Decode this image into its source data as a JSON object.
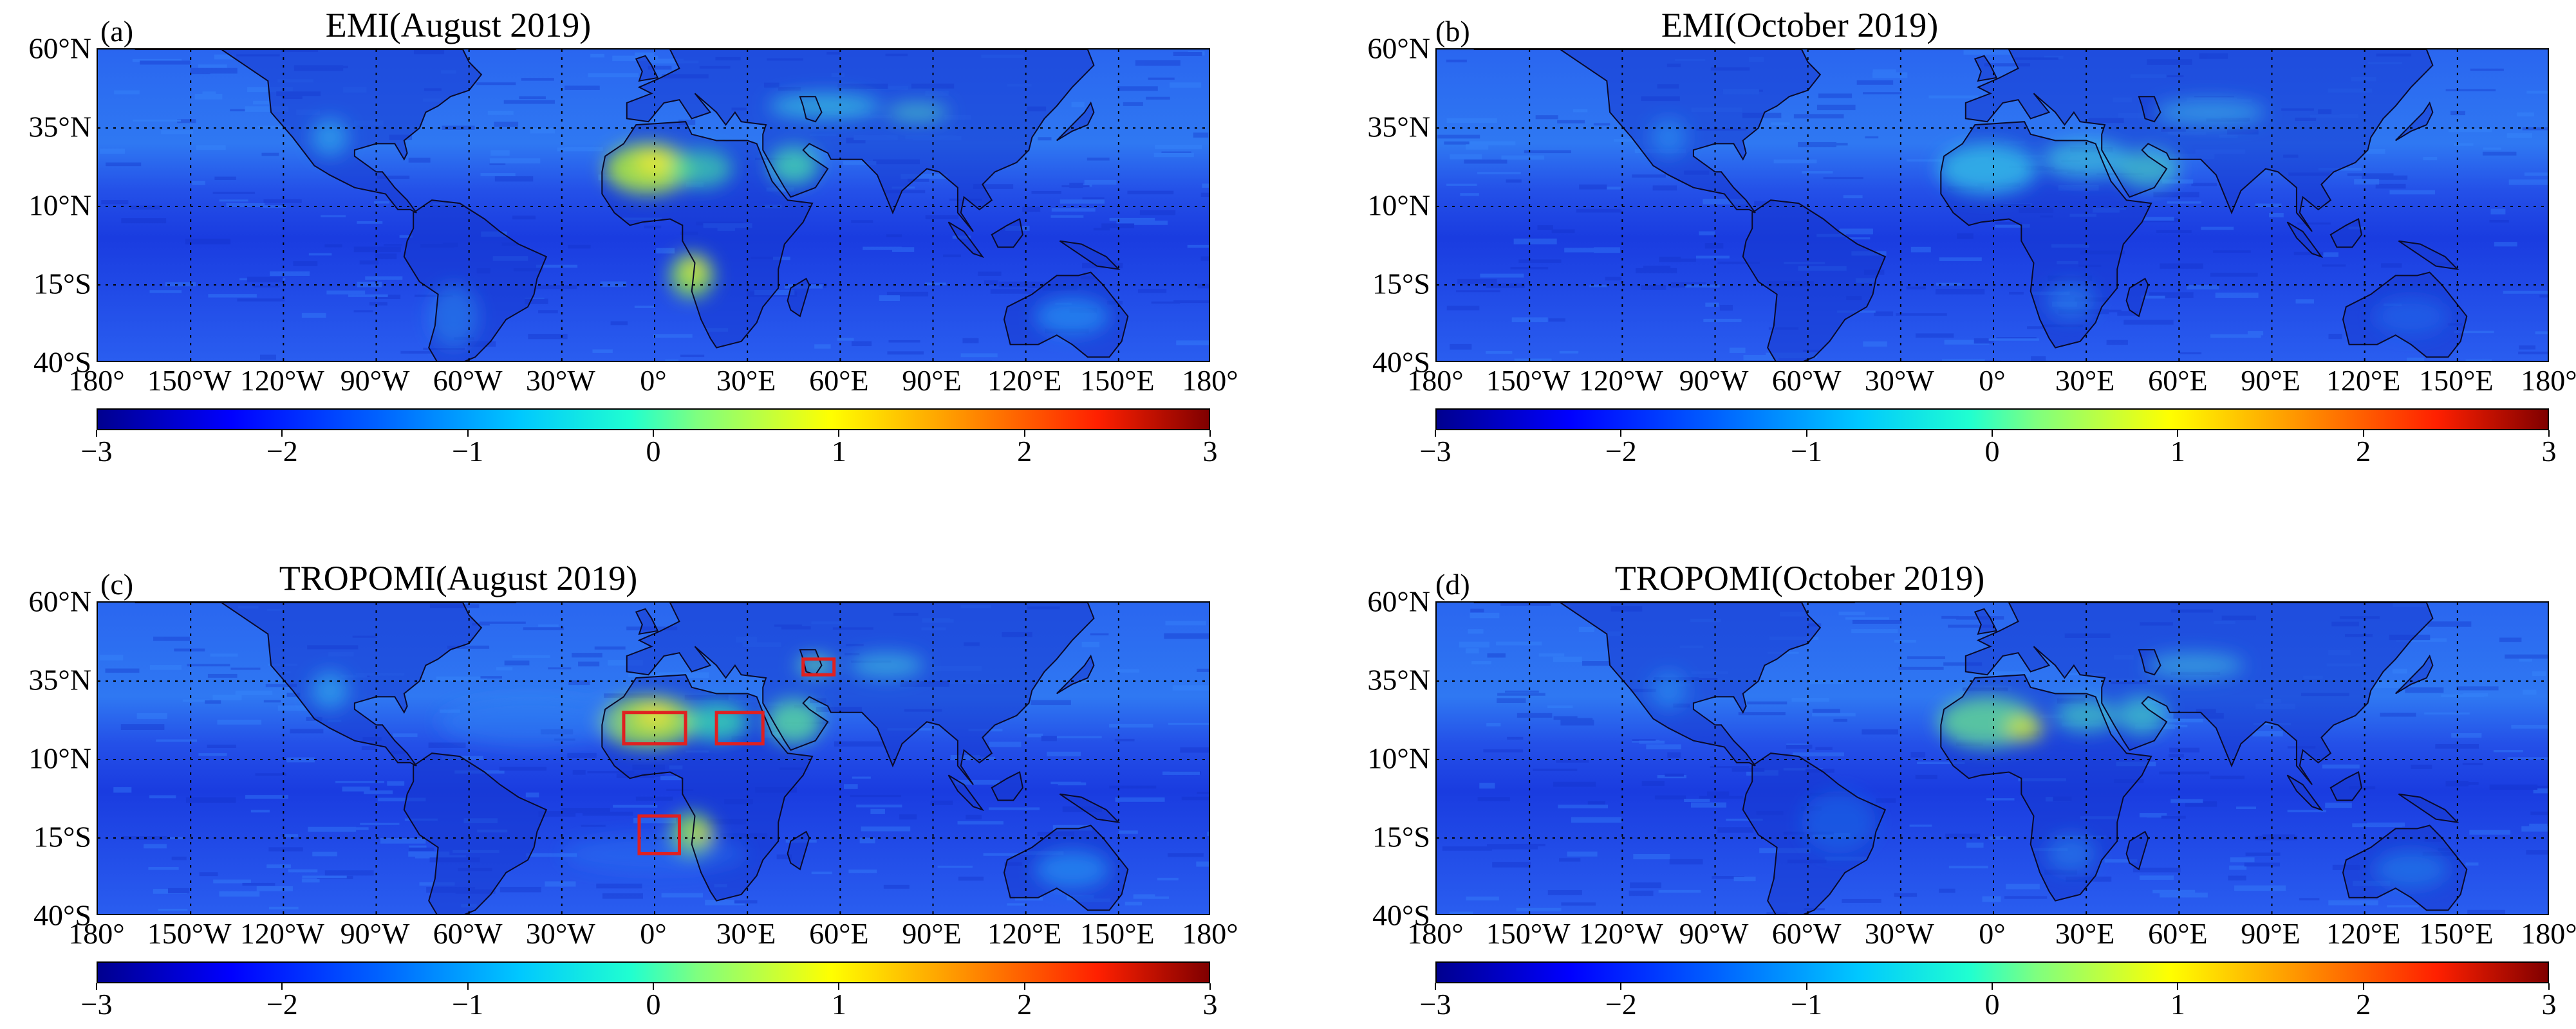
{
  "colors": {
    "ocean_base": "#1e46e0",
    "land_base": "#1435c8",
    "highlight_green": "#8fe24a",
    "highlight_yellow": "#e6e63c",
    "box_red": "#e02020",
    "coast": "#0a0a2a"
  },
  "lat_labels": [
    "60°N",
    "35°N",
    "10°N",
    "15°S",
    "40°S"
  ],
  "lon_labels": [
    "180°",
    "150°W",
    "120°W",
    "90°W",
    "60°W",
    "30°W",
    "0°",
    "30°E",
    "60°E",
    "90°E",
    "120°E",
    "150°E",
    "180°"
  ],
  "colorbar": {
    "ticks": [
      "−3",
      "−2",
      "−1",
      "0",
      "1",
      "2",
      "3"
    ],
    "range": [
      -3,
      3
    ]
  },
  "panels": [
    {
      "label": "(a)",
      "title": "EMI(August 2019)",
      "variant": "emi_aug",
      "boxes": false
    },
    {
      "label": "(b)",
      "title": "EMI(October 2019)",
      "variant": "emi_oct",
      "boxes": false
    },
    {
      "label": "(c)",
      "title": "TROPOMI(August 2019)",
      "variant": "tropomi_aug",
      "boxes": true
    },
    {
      "label": "(d)",
      "title": "TROPOMI(October 2019)",
      "variant": "tropomi_oct",
      "boxes": false
    }
  ],
  "red_boxes_deg": [
    {
      "lon": [
        -10,
        10
      ],
      "lat": [
        15,
        25
      ]
    },
    {
      "lon": [
        20,
        35
      ],
      "lat": [
        15,
        25
      ]
    },
    {
      "lon": [
        48,
        58
      ],
      "lat": [
        37,
        42
      ]
    },
    {
      "lon": [
        -5,
        8
      ],
      "lat": [
        -20,
        -8
      ]
    }
  ]
}
